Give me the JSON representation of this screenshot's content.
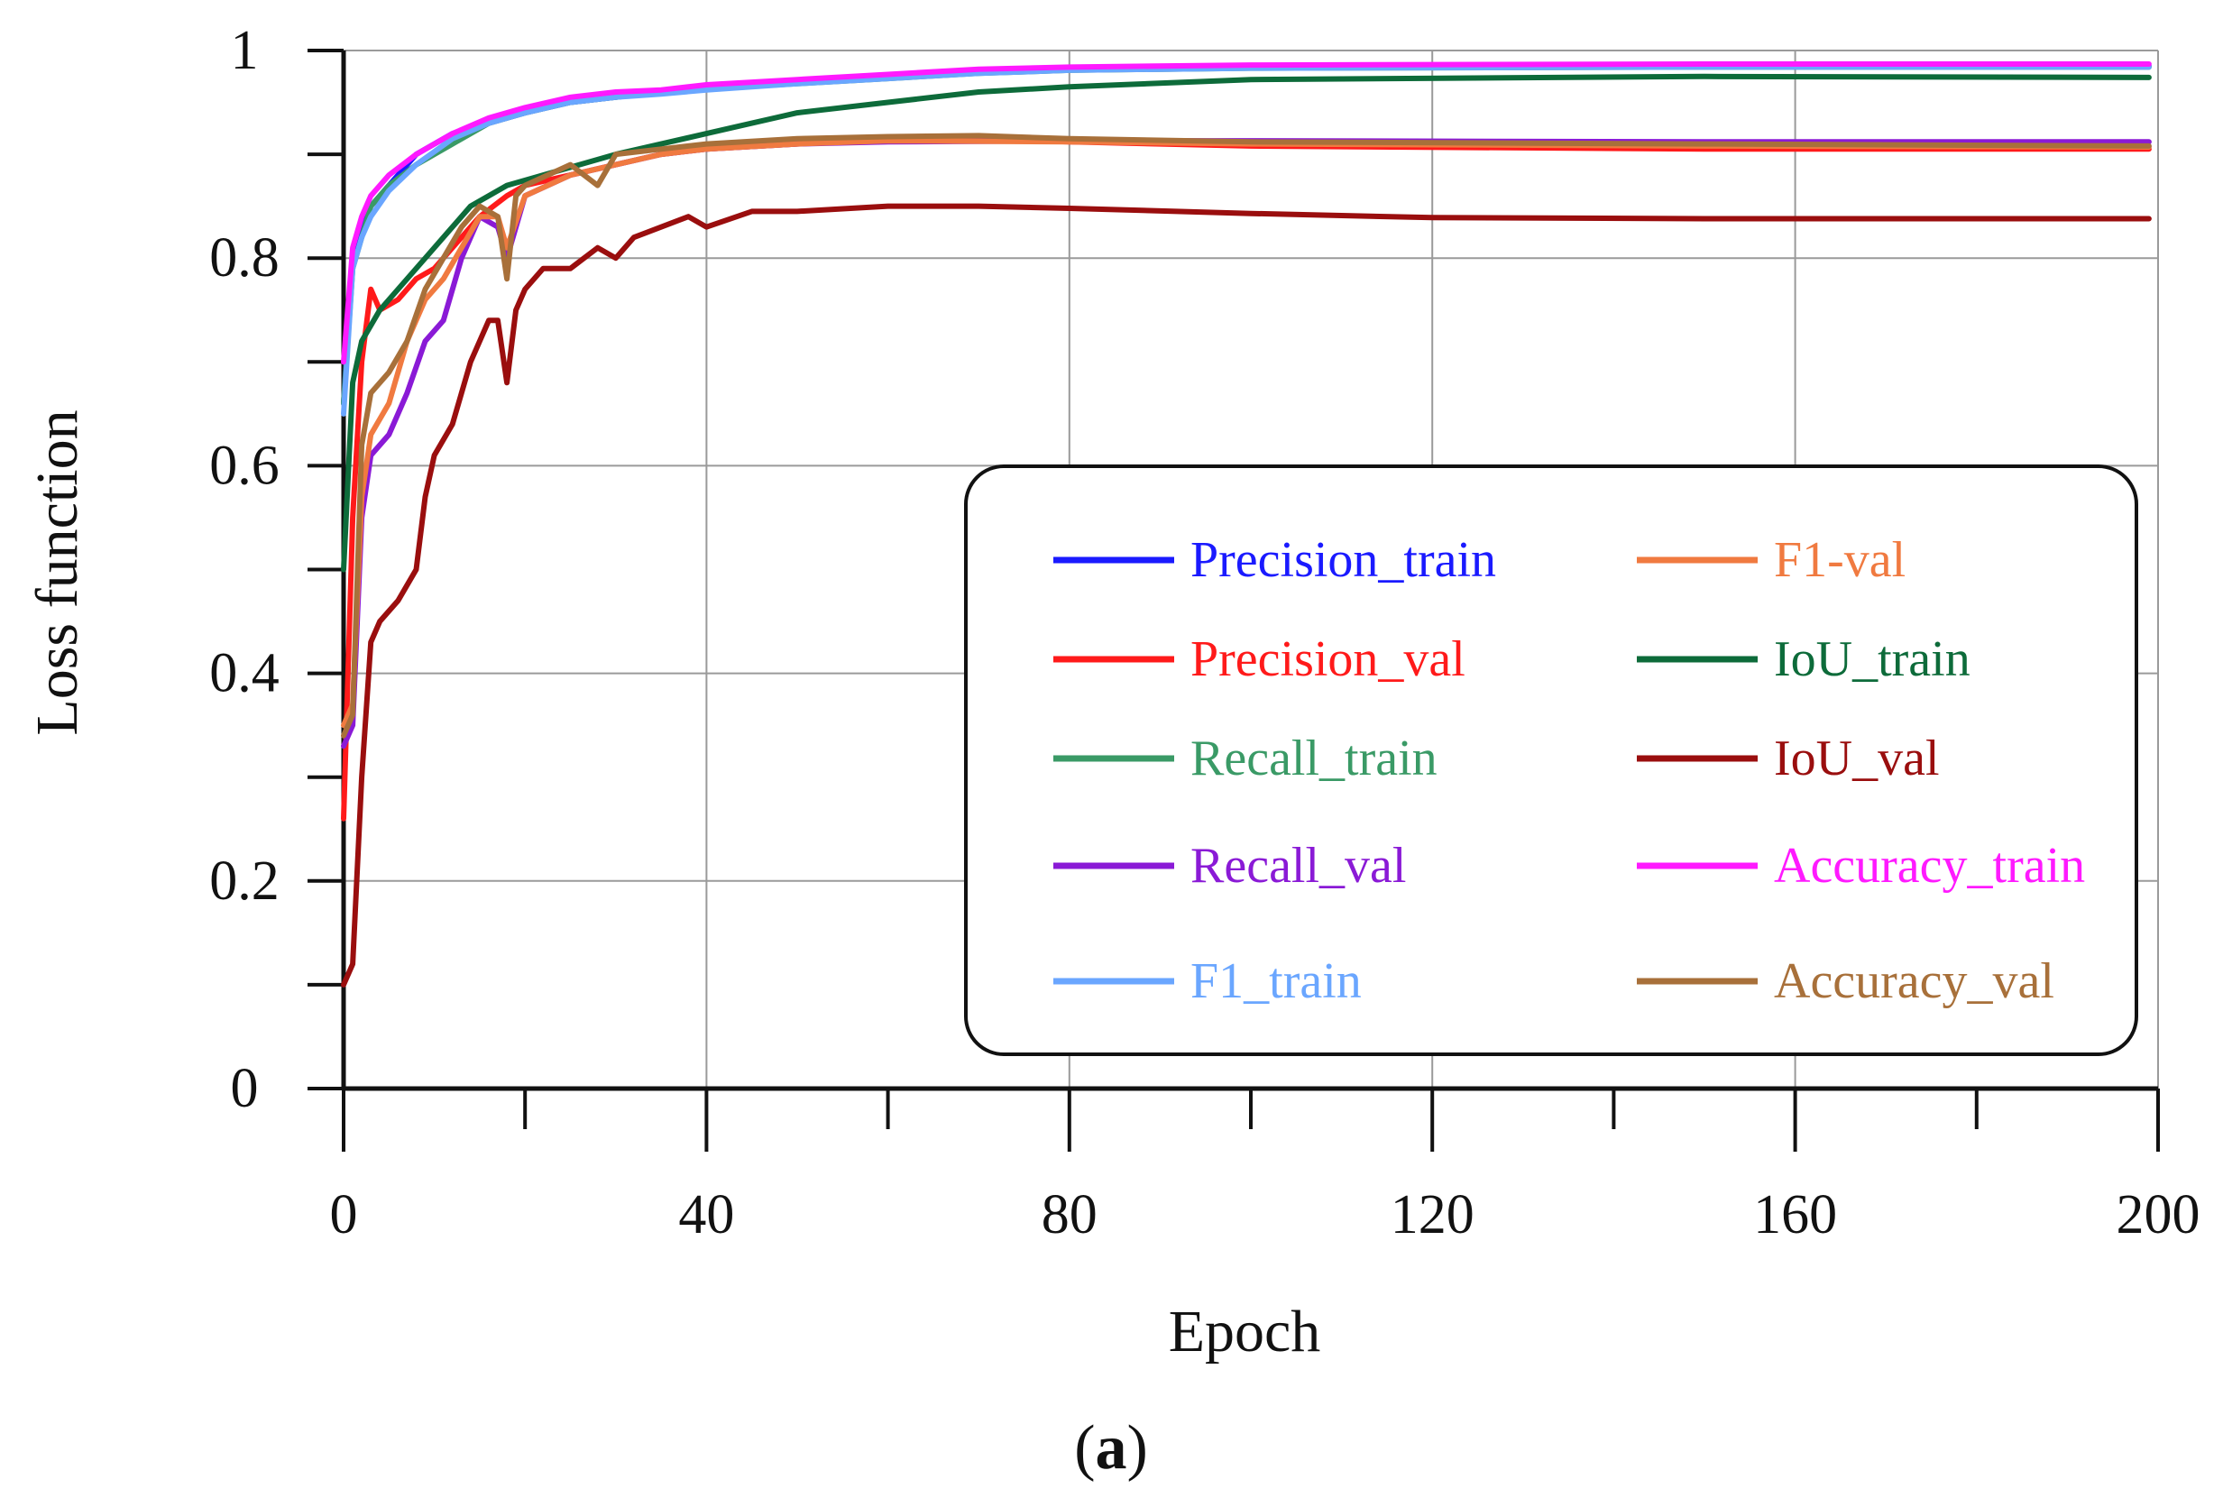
{
  "chart_data": {
    "type": "line",
    "xlabel": "Epoch",
    "ylabel": "Loss function",
    "caption": {
      "open": "(",
      "letter": "a",
      "close": ")"
    },
    "xlim": [
      0,
      200
    ],
    "ylim": [
      0,
      1
    ],
    "xticks": [
      0,
      40,
      80,
      120,
      160,
      200
    ],
    "yticks": [
      0,
      0.2,
      0.4,
      0.6,
      0.8,
      1
    ],
    "ytick_labels": [
      "0",
      "0.2",
      "0.4",
      "0.6",
      "0.8",
      "1"
    ],
    "grid": true,
    "legend_position": "center-right",
    "series": [
      {
        "name": "Precision_train",
        "color": "#1a1aff",
        "points": [
          [
            0,
            0.66
          ],
          [
            1,
            0.8
          ],
          [
            2,
            0.83
          ],
          [
            3,
            0.85
          ],
          [
            5,
            0.87
          ],
          [
            8,
            0.9
          ],
          [
            12,
            0.92
          ],
          [
            16,
            0.93
          ],
          [
            20,
            0.94
          ],
          [
            25,
            0.95
          ],
          [
            30,
            0.955
          ],
          [
            35,
            0.96
          ],
          [
            40,
            0.965
          ],
          [
            50,
            0.97
          ],
          [
            60,
            0.975
          ],
          [
            70,
            0.98
          ],
          [
            80,
            0.983
          ],
          [
            100,
            0.985
          ],
          [
            150,
            0.985
          ],
          [
            199,
            0.985
          ]
        ]
      },
      {
        "name": "Precision_val",
        "color": "#ff1a1a",
        "points": [
          [
            0,
            0.26
          ],
          [
            1,
            0.55
          ],
          [
            2,
            0.7
          ],
          [
            3,
            0.77
          ],
          [
            4,
            0.75
          ],
          [
            6,
            0.76
          ],
          [
            8,
            0.78
          ],
          [
            10,
            0.79
          ],
          [
            12,
            0.81
          ],
          [
            15,
            0.84
          ],
          [
            18,
            0.86
          ],
          [
            20,
            0.87
          ],
          [
            25,
            0.88
          ],
          [
            30,
            0.89
          ],
          [
            35,
            0.9
          ],
          [
            40,
            0.905
          ],
          [
            50,
            0.91
          ],
          [
            60,
            0.915
          ],
          [
            70,
            0.915
          ],
          [
            80,
            0.912
          ],
          [
            100,
            0.908
          ],
          [
            150,
            0.905
          ],
          [
            199,
            0.905
          ]
        ]
      },
      {
        "name": "Recall_train",
        "color": "#3a9a66",
        "points": [
          [
            0,
            0.66
          ],
          [
            1,
            0.79
          ],
          [
            2,
            0.82
          ],
          [
            3,
            0.85
          ],
          [
            5,
            0.87
          ],
          [
            8,
            0.89
          ],
          [
            12,
            0.91
          ],
          [
            16,
            0.93
          ],
          [
            20,
            0.94
          ],
          [
            25,
            0.95
          ],
          [
            30,
            0.955
          ],
          [
            35,
            0.96
          ],
          [
            40,
            0.963
          ],
          [
            50,
            0.968
          ],
          [
            60,
            0.973
          ],
          [
            70,
            0.978
          ],
          [
            80,
            0.981
          ],
          [
            100,
            0.983
          ],
          [
            150,
            0.984
          ],
          [
            199,
            0.984
          ]
        ]
      },
      {
        "name": "Recall_val",
        "color": "#8a1ad6",
        "points": [
          [
            0,
            0.33
          ],
          [
            1,
            0.35
          ],
          [
            2,
            0.55
          ],
          [
            3,
            0.61
          ],
          [
            5,
            0.63
          ],
          [
            7,
            0.67
          ],
          [
            9,
            0.72
          ],
          [
            11,
            0.74
          ],
          [
            13,
            0.8
          ],
          [
            15,
            0.84
          ],
          [
            17,
            0.83
          ],
          [
            18,
            0.8
          ],
          [
            20,
            0.86
          ],
          [
            25,
            0.88
          ],
          [
            30,
            0.89
          ],
          [
            35,
            0.9
          ],
          [
            40,
            0.905
          ],
          [
            50,
            0.91
          ],
          [
            60,
            0.912
          ],
          [
            80,
            0.913
          ],
          [
            100,
            0.913
          ],
          [
            150,
            0.912
          ],
          [
            199,
            0.912
          ]
        ]
      },
      {
        "name": "F1_train",
        "color": "#6aa6ff",
        "points": [
          [
            0,
            0.65
          ],
          [
            1,
            0.79
          ],
          [
            2,
            0.82
          ],
          [
            3,
            0.84
          ],
          [
            5,
            0.865
          ],
          [
            8,
            0.89
          ],
          [
            12,
            0.915
          ],
          [
            16,
            0.93
          ],
          [
            20,
            0.94
          ],
          [
            25,
            0.95
          ],
          [
            30,
            0.955
          ],
          [
            35,
            0.958
          ],
          [
            40,
            0.962
          ],
          [
            50,
            0.968
          ],
          [
            60,
            0.973
          ],
          [
            70,
            0.978
          ],
          [
            80,
            0.981
          ],
          [
            100,
            0.983
          ],
          [
            150,
            0.984
          ],
          [
            199,
            0.984
          ]
        ]
      },
      {
        "name": "F1-val",
        "color": "#f07a40",
        "points": [
          [
            0,
            0.35
          ],
          [
            1,
            0.37
          ],
          [
            2,
            0.57
          ],
          [
            3,
            0.63
          ],
          [
            5,
            0.66
          ],
          [
            7,
            0.72
          ],
          [
            9,
            0.76
          ],
          [
            11,
            0.78
          ],
          [
            13,
            0.81
          ],
          [
            15,
            0.84
          ],
          [
            17,
            0.84
          ],
          [
            18,
            0.81
          ],
          [
            20,
            0.86
          ],
          [
            25,
            0.88
          ],
          [
            30,
            0.89
          ],
          [
            35,
            0.9
          ],
          [
            40,
            0.905
          ],
          [
            50,
            0.91
          ],
          [
            60,
            0.913
          ],
          [
            80,
            0.912
          ],
          [
            100,
            0.91
          ],
          [
            150,
            0.908
          ],
          [
            199,
            0.907
          ]
        ]
      },
      {
        "name": "IoU_train",
        "color": "#0d6b3a",
        "points": [
          [
            0,
            0.5
          ],
          [
            1,
            0.68
          ],
          [
            2,
            0.72
          ],
          [
            4,
            0.75
          ],
          [
            6,
            0.77
          ],
          [
            10,
            0.81
          ],
          [
            14,
            0.85
          ],
          [
            18,
            0.87
          ],
          [
            22,
            0.88
          ],
          [
            26,
            0.89
          ],
          [
            30,
            0.9
          ],
          [
            35,
            0.91
          ],
          [
            40,
            0.92
          ],
          [
            45,
            0.93
          ],
          [
            50,
            0.94
          ],
          [
            60,
            0.95
          ],
          [
            70,
            0.96
          ],
          [
            80,
            0.965
          ],
          [
            100,
            0.972
          ],
          [
            150,
            0.975
          ],
          [
            199,
            0.974
          ]
        ]
      },
      {
        "name": "IoU_val",
        "color": "#9a0e0e",
        "points": [
          [
            0,
            0.1
          ],
          [
            1,
            0.12
          ],
          [
            2,
            0.3
          ],
          [
            3,
            0.43
          ],
          [
            4,
            0.45
          ],
          [
            6,
            0.47
          ],
          [
            8,
            0.5
          ],
          [
            9,
            0.57
          ],
          [
            10,
            0.61
          ],
          [
            12,
            0.64
          ],
          [
            14,
            0.7
          ],
          [
            16,
            0.74
          ],
          [
            17,
            0.74
          ],
          [
            18,
            0.68
          ],
          [
            19,
            0.75
          ],
          [
            20,
            0.77
          ],
          [
            22,
            0.79
          ],
          [
            25,
            0.79
          ],
          [
            28,
            0.81
          ],
          [
            30,
            0.8
          ],
          [
            32,
            0.82
          ],
          [
            35,
            0.83
          ],
          [
            38,
            0.84
          ],
          [
            40,
            0.83
          ],
          [
            45,
            0.845
          ],
          [
            50,
            0.845
          ],
          [
            60,
            0.85
          ],
          [
            70,
            0.85
          ],
          [
            80,
            0.848
          ],
          [
            100,
            0.843
          ],
          [
            120,
            0.839
          ],
          [
            150,
            0.838
          ],
          [
            199,
            0.838
          ]
        ]
      },
      {
        "name": "Accuracy_train",
        "color": "#ff1aff",
        "points": [
          [
            0,
            0.7
          ],
          [
            1,
            0.81
          ],
          [
            2,
            0.84
          ],
          [
            3,
            0.86
          ],
          [
            5,
            0.88
          ],
          [
            8,
            0.9
          ],
          [
            12,
            0.92
          ],
          [
            16,
            0.935
          ],
          [
            20,
            0.945
          ],
          [
            25,
            0.955
          ],
          [
            30,
            0.96
          ],
          [
            35,
            0.962
          ],
          [
            40,
            0.967
          ],
          [
            50,
            0.972
          ],
          [
            60,
            0.977
          ],
          [
            70,
            0.982
          ],
          [
            80,
            0.984
          ],
          [
            100,
            0.986
          ],
          [
            150,
            0.987
          ],
          [
            199,
            0.987
          ]
        ]
      },
      {
        "name": "Accuracy_val",
        "color": "#a8703a",
        "points": [
          [
            0,
            0.34
          ],
          [
            1,
            0.36
          ],
          [
            2,
            0.62
          ],
          [
            3,
            0.67
          ],
          [
            5,
            0.69
          ],
          [
            7,
            0.72
          ],
          [
            9,
            0.77
          ],
          [
            11,
            0.8
          ],
          [
            13,
            0.83
          ],
          [
            15,
            0.85
          ],
          [
            17,
            0.84
          ],
          [
            18,
            0.78
          ],
          [
            19,
            0.86
          ],
          [
            20,
            0.87
          ],
          [
            25,
            0.89
          ],
          [
            28,
            0.87
          ],
          [
            30,
            0.9
          ],
          [
            35,
            0.905
          ],
          [
            40,
            0.91
          ],
          [
            50,
            0.915
          ],
          [
            60,
            0.917
          ],
          [
            70,
            0.918
          ],
          [
            80,
            0.915
          ],
          [
            100,
            0.912
          ],
          [
            150,
            0.91
          ],
          [
            199,
            0.908
          ]
        ]
      }
    ]
  }
}
